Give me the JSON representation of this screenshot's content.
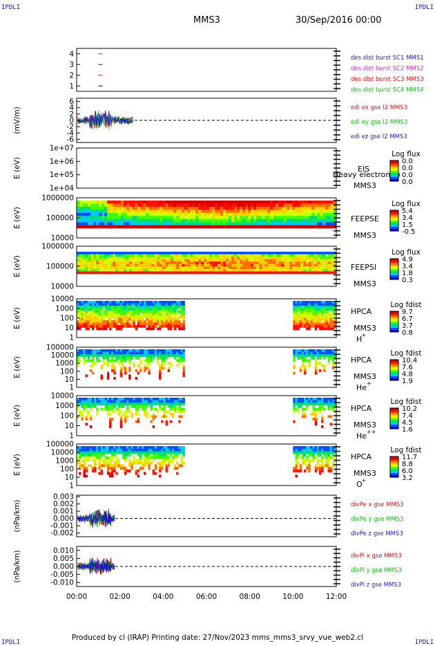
{
  "header": {
    "corner_tl": "IPDLI",
    "corner_tr": "IPDLI",
    "corner_bl": "IPDLI",
    "corner_br": "IPDLI",
    "mission": "MMS3",
    "date": "30/Sep/2016 00:00"
  },
  "footer": {
    "text": "Produced by cl (IRAP)   Printing date: 27/Nov/2023   mms_mms3_srvy_vue_web2.cl"
  },
  "colorscale": [
    "#0000c8",
    "#0050ff",
    "#00c8ff",
    "#00e070",
    "#40ff00",
    "#d0ff00",
    "#ffd000",
    "#ff7000",
    "#ff1000",
    "#d80000"
  ],
  "chart_data": [
    {
      "id": "dist_burst",
      "type": "scatter",
      "ylim": [
        0.5,
        4.5
      ],
      "yticks": [
        "1",
        "2",
        "3",
        "4"
      ],
      "legend": [
        {
          "label": "des dist burst SC1 MMS1",
          "color": "#1a1acc"
        },
        {
          "label": "des dist burst SC2 MMS2",
          "color": "#cc22cc"
        },
        {
          "label": "des dist burst SC3 MMS3",
          "color": "#dd1111"
        },
        {
          "label": "des dist burst SC4 MMS4",
          "color": "#11bb11"
        }
      ],
      "series": [
        {
          "name": "SC1",
          "y": 1,
          "t": [
            1.1
          ]
        },
        {
          "name": "SC2",
          "y": 2,
          "t": [
            1.1
          ]
        },
        {
          "name": "SC3",
          "y": 3,
          "t": [
            1.1
          ]
        },
        {
          "name": "SC4",
          "y": 4,
          "t": [
            1.1
          ]
        }
      ]
    },
    {
      "id": "edi",
      "type": "line",
      "ylabel": "(mV/m)",
      "ylim": [
        -7,
        7
      ],
      "yticks": [
        "6",
        "4",
        "2",
        "0",
        "-2",
        "-4",
        "-6"
      ],
      "legend": [
        {
          "label": "edi ex gse l2 MMS3",
          "color": "#dd1111"
        },
        {
          "label": "edi ey gse l2 MMS3",
          "color": "#11bb11"
        },
        {
          "label": "edi ez gse l2 MMS3",
          "color": "#1a1acc"
        }
      ],
      "data_end_hours": 2.6
    },
    {
      "id": "eis",
      "type": "heatmap",
      "ylabel": "E (eV)",
      "yticks": [
        "1e+07",
        "1e+06",
        "1e+05",
        "1e+04"
      ],
      "instrument": "EIS",
      "overlay": "Heavy electron to",
      "spacecraft": "MMS3",
      "cbar_title": "Log flux",
      "cbar_ticks": [
        "0.0",
        "0.0",
        "0.0",
        "0.0"
      ],
      "empty": true
    },
    {
      "id": "feeps_e",
      "type": "heatmap",
      "ylabel": "E (eV)",
      "yticks": [
        "1000000",
        "100000",
        "10000"
      ],
      "instrument": "FEEPSE",
      "spacecraft": "MMS3",
      "cbar_title": "Log flux",
      "cbar_ticks": [
        "5.4",
        "3.4",
        "1.5",
        "-0.5"
      ]
    },
    {
      "id": "feeps_i",
      "type": "heatmap",
      "ylabel": "E (eV)",
      "yticks": [
        "1000000",
        "100000",
        "10000"
      ],
      "instrument": "FEEPSI",
      "spacecraft": "MMS3",
      "cbar_title": "Log flux",
      "cbar_ticks": [
        "4.9",
        "3.4",
        "1.8",
        "0.3"
      ]
    },
    {
      "id": "hpca_h",
      "type": "heatmap",
      "ylabel": "E (eV)",
      "yticks": [
        "10000",
        "1000",
        "100",
        "10",
        "1"
      ],
      "instrument": "HPCA",
      "spacecraft": "MMS3",
      "species": "H",
      "charge": "+",
      "cbar_title": "Log fdist",
      "cbar_ticks": [
        "9.7",
        "6.7",
        "3.7",
        "0.8"
      ],
      "coverage_hours": [
        [
          0,
          5.0
        ],
        [
          10.0,
          12.0
        ]
      ]
    },
    {
      "id": "hpca_he",
      "type": "heatmap",
      "ylabel": "E (eV)",
      "yticks": [
        "100000",
        "10000",
        "1000",
        "100",
        "10",
        "1"
      ],
      "instrument": "HPCA",
      "spacecraft": "MMS3",
      "species": "He",
      "charge": "+",
      "cbar_title": "Log fdist",
      "cbar_ticks": [
        "10.4",
        "7.6",
        "4.8",
        "1.9"
      ],
      "coverage_hours": [
        [
          0,
          5.0
        ],
        [
          10.0,
          12.0
        ]
      ]
    },
    {
      "id": "hpca_he2",
      "type": "heatmap",
      "ylabel": "E (eV)",
      "yticks": [
        "10000",
        "1000",
        "100",
        "10",
        "1"
      ],
      "instrument": "HPCA",
      "spacecraft": "MMS3",
      "species": "He",
      "charge": "++",
      "cbar_title": "Log fdist",
      "cbar_ticks": [
        "10.2",
        "7.4",
        "4.5",
        "1.6"
      ],
      "coverage_hours": [
        [
          0,
          5.0
        ],
        [
          10.0,
          12.0
        ]
      ]
    },
    {
      "id": "hpca_o",
      "type": "heatmap",
      "ylabel": "E (eV)",
      "yticks": [
        "100000",
        "10000",
        "1000",
        "100",
        "10",
        "1"
      ],
      "instrument": "HPCA",
      "spacecraft": "MMS3",
      "species": "O",
      "charge": "+",
      "cbar_title": "Log fdist",
      "cbar_ticks": [
        "11.7",
        "8.8",
        "6.0",
        "3.2"
      ],
      "coverage_hours": [
        [
          0,
          5.0
        ],
        [
          10.0,
          12.0
        ]
      ]
    },
    {
      "id": "divpe",
      "type": "line",
      "ylabel": "(nPa/km)",
      "ylim": [
        -0.0025,
        0.0032
      ],
      "yticks": [
        "0.003",
        "0.002",
        "0.001",
        "0.000",
        "-0.001",
        "-0.002"
      ],
      "legend": [
        {
          "label": "divPe x gse MMS3",
          "color": "#dd1111"
        },
        {
          "label": "divPe y gse MMS3",
          "color": "#11bb11"
        },
        {
          "label": "divPe z gse MMS3",
          "color": "#1a1acc"
        }
      ],
      "data_end_hours": 1.75
    },
    {
      "id": "divpi",
      "type": "line",
      "ylabel": "(nPa/km)",
      "ylim": [
        -0.0125,
        0.0125
      ],
      "yticks": [
        "0.010",
        "0.005",
        "0.000",
        "-0.005",
        "-0.010"
      ],
      "legend": [
        {
          "label": "divPi x gse MMS3",
          "color": "#dd1111"
        },
        {
          "label": "divPi y gse MMS3",
          "color": "#11bb11"
        },
        {
          "label": "divPi z gse MMS3",
          "color": "#1a1acc"
        }
      ],
      "data_end_hours": 1.75
    }
  ],
  "xaxis": {
    "range_hours": [
      0,
      12
    ],
    "ticks": [
      {
        "h": 0,
        "label": "00:00"
      },
      {
        "h": 2,
        "label": "02:00"
      },
      {
        "h": 4,
        "label": "04:00"
      },
      {
        "h": 6,
        "label": "06:00"
      },
      {
        "h": 8,
        "label": "08:00"
      },
      {
        "h": 10,
        "label": "10:00"
      },
      {
        "h": 12,
        "label": "12:00"
      }
    ]
  }
}
